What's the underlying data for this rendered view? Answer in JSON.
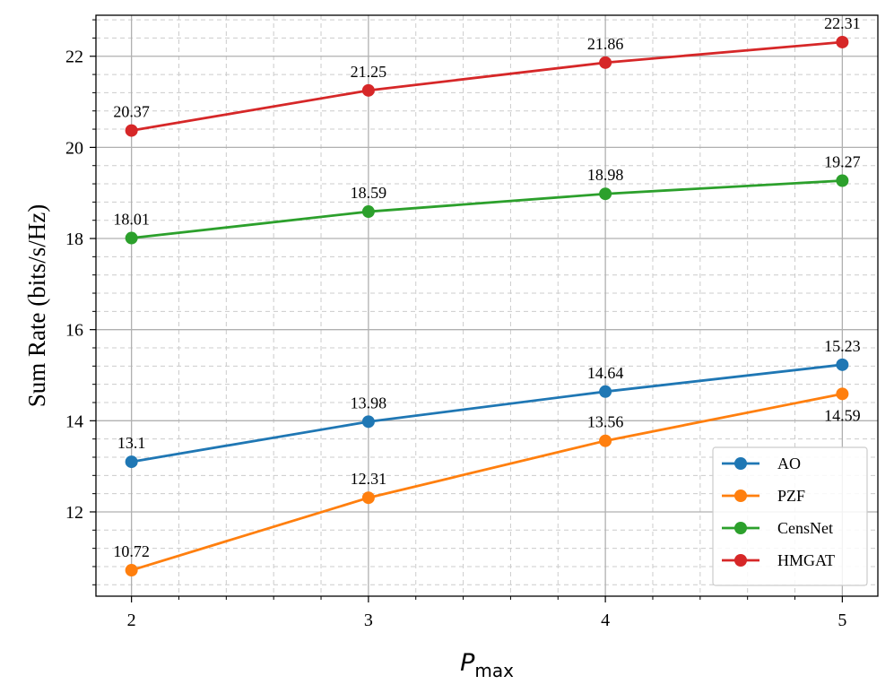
{
  "chart_data": {
    "type": "line",
    "x": [
      2,
      3,
      4,
      5
    ],
    "xticks": [
      "2",
      "3",
      "4",
      "5"
    ],
    "yticks": [
      "12",
      "14",
      "16",
      "18",
      "20",
      "22"
    ],
    "xlabel_main": "P",
    "xlabel_sub": "max",
    "ylabel": "Sum Rate (bits/s/Hz)",
    "xlim": [
      1.85,
      5.15
    ],
    "ylim": [
      10.15,
      22.9
    ],
    "grid": true,
    "minor_grid": true,
    "legend_position": "lower-right",
    "series": [
      {
        "name": "AO",
        "color": "#1f77b4",
        "values": [
          13.1,
          13.98,
          14.64,
          15.23
        ],
        "labels": [
          "13.1",
          "13.98",
          "14.64",
          "15.23"
        ],
        "label_side": [
          "above",
          "above",
          "above",
          "above"
        ]
      },
      {
        "name": "PZF",
        "color": "#ff7f0e",
        "values": [
          10.72,
          12.31,
          13.56,
          14.59
        ],
        "labels": [
          "10.72",
          "12.31",
          "13.56",
          "14.59"
        ],
        "label_side": [
          "above",
          "above",
          "above",
          "below"
        ]
      },
      {
        "name": "CensNet",
        "color": "#2ca02c",
        "values": [
          18.01,
          18.59,
          18.98,
          19.27
        ],
        "labels": [
          "18.01",
          "18.59",
          "18.98",
          "19.27"
        ],
        "label_side": [
          "above",
          "above",
          "above",
          "above"
        ]
      },
      {
        "name": "HMGAT",
        "color": "#d62728",
        "values": [
          20.37,
          21.25,
          21.86,
          22.31
        ],
        "labels": [
          "20.37",
          "21.25",
          "21.86",
          "22.31"
        ],
        "label_side": [
          "above",
          "above",
          "above",
          "above"
        ]
      }
    ]
  }
}
